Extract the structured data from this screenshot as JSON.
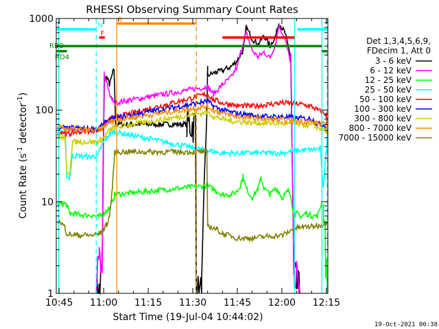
{
  "chart_data": {
    "type": "line",
    "title": "RHESSI Observing Summary Count Rates",
    "xlabel": "Start Time (19-Jul-04 10:44:02)",
    "ylabel_parts": [
      "Count Rate (s",
      "-1",
      " detector",
      "-1",
      ")"
    ],
    "yscale": "log",
    "ylim": [
      1,
      1000
    ],
    "xlim_min": [
      44.03,
      135.5
    ],
    "x_ticks": [
      {
        "m": 45,
        "label": "10:45"
      },
      {
        "m": 60,
        "label": "11:00"
      },
      {
        "m": 75,
        "label": "11:15"
      },
      {
        "m": 90,
        "label": "11:30"
      },
      {
        "m": 105,
        "label": "11:45"
      },
      {
        "m": 120,
        "label": "12:00"
      },
      {
        "m": 135,
        "label": "12:15"
      }
    ],
    "y_ticks": [
      {
        "v": 1,
        "label": "1"
      },
      {
        "v": 10,
        "label": "10"
      },
      {
        "v": 100,
        "label": "100"
      },
      {
        "v": 1000,
        "label": "1000"
      }
    ],
    "legend_header": [
      "Det 1,3,4,5,6,9,",
      "FDecim 1, Att 0"
    ],
    "legend_placement": "right",
    "timestamp": "19-Oct-2021 00:38",
    "series": [
      {
        "name": "3 - 6 keV",
        "color": "#000000",
        "points": [
          [
            57.5,
            1
          ],
          [
            58.5,
            1
          ],
          [
            59.5,
            1.8
          ],
          [
            60.2,
            210
          ],
          [
            61,
            230
          ],
          [
            62,
            190
          ],
          [
            63,
            250
          ],
          [
            63.5,
            280
          ],
          [
            64,
            70
          ],
          [
            72,
            70
          ],
          [
            80,
            70
          ],
          [
            88,
            70
          ],
          [
            91.2,
            1
          ],
          [
            93,
            1
          ],
          [
            95,
            240
          ],
          [
            98,
            260
          ],
          [
            100,
            270
          ],
          [
            103,
            300
          ],
          [
            105,
            350
          ],
          [
            107,
            450
          ],
          [
            108,
            800
          ],
          [
            110,
            600
          ],
          [
            112,
            520
          ],
          [
            114,
            650
          ],
          [
            116,
            500
          ],
          [
            118,
            650
          ],
          [
            119,
            900
          ],
          [
            121,
            700
          ],
          [
            123,
            380
          ],
          [
            124,
            1.8
          ],
          [
            125,
            1.2
          ],
          [
            126,
            1
          ]
        ]
      },
      {
        "name": "6 - 12 keV",
        "color": "#ff00ff",
        "points": [
          [
            57.5,
            1.5
          ],
          [
            58.5,
            2
          ],
          [
            59.5,
            2.5
          ],
          [
            60.2,
            230
          ],
          [
            61,
            200
          ],
          [
            62,
            150
          ],
          [
            63,
            130
          ],
          [
            63.5,
            120
          ],
          [
            95,
            180
          ],
          [
            97,
            150
          ],
          [
            100,
            190
          ],
          [
            103,
            230
          ],
          [
            105,
            300
          ],
          [
            107,
            550
          ],
          [
            108,
            700
          ],
          [
            110,
            450
          ],
          [
            112,
            380
          ],
          [
            114,
            430
          ],
          [
            116,
            370
          ],
          [
            118,
            550
          ],
          [
            119,
            850
          ],
          [
            121,
            600
          ],
          [
            123,
            330
          ],
          [
            124,
            2
          ],
          [
            125,
            1.5
          ],
          [
            126,
            1.2
          ]
        ]
      },
      {
        "name": "12 - 25 keV",
        "color": "#00ff00",
        "points": [
          [
            44.5,
            9.5
          ],
          [
            46,
            9.5
          ],
          [
            47,
            9.5
          ],
          [
            47.6,
            9
          ],
          [
            48.5,
            7.5
          ],
          [
            52,
            7.2
          ],
          [
            56,
            7.1
          ],
          [
            58,
            6.9
          ],
          [
            59,
            7
          ],
          [
            60,
            7.5
          ],
          [
            61,
            8
          ],
          [
            62,
            8.5
          ],
          [
            63,
            10
          ],
          [
            63.7,
            12
          ],
          [
            95,
            15
          ],
          [
            98,
            13
          ],
          [
            100,
            12
          ],
          [
            103,
            12
          ],
          [
            105,
            13
          ],
          [
            106,
            15
          ],
          [
            107,
            19
          ],
          [
            108,
            14
          ],
          [
            110,
            11
          ],
          [
            112,
            14
          ],
          [
            113,
            18
          ],
          [
            114,
            14
          ],
          [
            116,
            12
          ],
          [
            118,
            14
          ],
          [
            119,
            13
          ],
          [
            120,
            11
          ],
          [
            121,
            12
          ],
          [
            122,
            13
          ],
          [
            123,
            12
          ],
          [
            124,
            7
          ],
          [
            125,
            7.5
          ],
          [
            126,
            7
          ],
          [
            127,
            7
          ],
          [
            128,
            7.5
          ],
          [
            130,
            7
          ],
          [
            132,
            7
          ],
          [
            133.5,
            10
          ],
          [
            134,
            9
          ],
          [
            135.3,
            1
          ]
        ]
      },
      {
        "name": "25 - 50 keV",
        "color": "#00ffff",
        "points": [
          [
            44.5,
            57
          ],
          [
            46,
            59
          ],
          [
            47,
            57
          ],
          [
            47.6,
            19
          ],
          [
            48.5,
            18
          ],
          [
            49.5,
            32
          ],
          [
            55,
            31
          ],
          [
            58,
            32
          ],
          [
            59,
            38
          ],
          [
            60,
            45
          ],
          [
            61,
            50
          ],
          [
            62,
            55
          ],
          [
            63,
            57
          ],
          [
            63.7,
            58
          ],
          [
            95,
            36
          ],
          [
            100,
            34
          ],
          [
            105,
            34
          ],
          [
            110,
            34
          ],
          [
            115,
            34
          ],
          [
            120,
            34
          ],
          [
            125,
            36
          ],
          [
            130,
            37
          ],
          [
            133,
            38
          ],
          [
            133.5,
            20
          ],
          [
            134,
            15
          ],
          [
            135.3,
            50
          ]
        ]
      },
      {
        "name": "50 - 100 keV",
        "color": "#ff0000",
        "points": [
          [
            44.5,
            55
          ],
          [
            46,
            58
          ],
          [
            47,
            57
          ],
          [
            47.6,
            55
          ],
          [
            48.5,
            55
          ],
          [
            49.5,
            57
          ],
          [
            52,
            58
          ],
          [
            56,
            60
          ],
          [
            58,
            60
          ],
          [
            59,
            62
          ],
          [
            60,
            65
          ],
          [
            61,
            75
          ],
          [
            62,
            80
          ],
          [
            63,
            82
          ],
          [
            63.7,
            83
          ],
          [
            95,
            150
          ],
          [
            97,
            130
          ],
          [
            100,
            120
          ],
          [
            103,
            115
          ],
          [
            105,
            112
          ],
          [
            110,
            110
          ],
          [
            115,
            115
          ],
          [
            120,
            120
          ],
          [
            125,
            118
          ],
          [
            130,
            110
          ],
          [
            132,
            100
          ],
          [
            133.5,
            95
          ],
          [
            135,
            90
          ],
          [
            135.3,
            50
          ]
        ]
      },
      {
        "name": "100 - 300 keV",
        "color": "#0000ff",
        "points": [
          [
            44.5,
            65
          ],
          [
            46,
            65
          ],
          [
            47,
            64
          ],
          [
            47.6,
            62
          ],
          [
            48.5,
            63
          ],
          [
            49.5,
            64
          ],
          [
            52,
            63
          ],
          [
            56,
            62
          ],
          [
            58,
            64
          ],
          [
            59,
            66
          ],
          [
            60,
            70
          ],
          [
            61,
            75
          ],
          [
            62,
            78
          ],
          [
            63,
            80
          ],
          [
            63.7,
            82
          ],
          [
            95,
            125
          ],
          [
            97,
            110
          ],
          [
            100,
            100
          ],
          [
            103,
            95
          ],
          [
            105,
            92
          ],
          [
            110,
            88
          ],
          [
            115,
            85
          ],
          [
            120,
            85
          ],
          [
            125,
            82
          ],
          [
            130,
            80
          ],
          [
            132,
            70
          ],
          [
            133.5,
            70
          ],
          [
            135,
            68
          ],
          [
            135.3,
            65
          ]
        ]
      },
      {
        "name": "300 - 800 keV",
        "color": "#cccc00",
        "points": [
          [
            44.5,
            50
          ],
          [
            46,
            50
          ],
          [
            47,
            49
          ],
          [
            47.6,
            20
          ],
          [
            48.5,
            20
          ],
          [
            49.5,
            45
          ],
          [
            52,
            45
          ],
          [
            56,
            45
          ],
          [
            58,
            45
          ],
          [
            59,
            47
          ],
          [
            60,
            50
          ],
          [
            61,
            55
          ],
          [
            62,
            60
          ],
          [
            63,
            63
          ],
          [
            63.7,
            65
          ],
          [
            95,
            95
          ],
          [
            97,
            85
          ],
          [
            100,
            80
          ],
          [
            103,
            76
          ],
          [
            105,
            75
          ],
          [
            110,
            73
          ],
          [
            115,
            72
          ],
          [
            120,
            72
          ],
          [
            125,
            70
          ],
          [
            130,
            68
          ],
          [
            132,
            65
          ],
          [
            133.5,
            62
          ],
          [
            135,
            60
          ],
          [
            135.3,
            58
          ]
        ]
      },
      {
        "name": "800 - 7000 keV",
        "color": "#ff8800",
        "points": [
          [
            44.5,
            65
          ],
          [
            46,
            64
          ],
          [
            47,
            63
          ],
          [
            47.6,
            62
          ],
          [
            48.5,
            62
          ],
          [
            49.5,
            62
          ],
          [
            52,
            61
          ],
          [
            56,
            60
          ],
          [
            58,
            61
          ],
          [
            59,
            62
          ],
          [
            60,
            65
          ],
          [
            61,
            70
          ],
          [
            62,
            74
          ],
          [
            63,
            76
          ],
          [
            63.7,
            78
          ],
          [
            95,
            110
          ],
          [
            97,
            100
          ],
          [
            100,
            92
          ],
          [
            103,
            88
          ],
          [
            105,
            85
          ],
          [
            110,
            82
          ],
          [
            115,
            80
          ],
          [
            120,
            78
          ],
          [
            125,
            76
          ],
          [
            130,
            74
          ],
          [
            132,
            72
          ],
          [
            133.5,
            70
          ],
          [
            135,
            68
          ],
          [
            135.3,
            66
          ]
        ]
      },
      {
        "name": "7000 - 15000 keV",
        "color": "#808000",
        "points": [
          [
            44.5,
            6.2
          ],
          [
            46,
            5.8
          ],
          [
            47,
            5.2
          ],
          [
            47.6,
            4.5
          ],
          [
            48.5,
            4.4
          ],
          [
            52,
            4.3
          ],
          [
            56,
            4.3
          ],
          [
            58,
            4.4
          ],
          [
            59,
            4.6
          ],
          [
            60,
            5
          ],
          [
            61,
            5.6
          ],
          [
            62,
            7
          ],
          [
            63,
            15
          ],
          [
            63.7,
            35
          ],
          [
            95,
            5.5
          ],
          [
            98,
            5
          ],
          [
            100,
            4.5
          ],
          [
            103,
            4.2
          ],
          [
            105,
            4
          ],
          [
            110,
            4
          ],
          [
            115,
            4.2
          ],
          [
            120,
            4.3
          ],
          [
            125,
            5.2
          ],
          [
            130,
            5.4
          ],
          [
            133,
            5.5
          ],
          [
            135.3,
            6
          ]
        ]
      }
    ],
    "markers": {
      "vlines": [
        {
          "m": 44.8,
          "color": "#00ffff",
          "style": "solid"
        },
        {
          "m": 57.5,
          "color": "#00ffff",
          "style": "dashed"
        },
        {
          "m": 64.4,
          "color": "#ff8800",
          "style": "solid"
        },
        {
          "m": 91.2,
          "color": "#ff8800",
          "style": "dashed"
        },
        {
          "m": 124.3,
          "color": "#00ffff",
          "style": "solid"
        },
        {
          "m": 133.5,
          "color": "#00ffff",
          "style": "solid"
        },
        {
          "m": 135.3,
          "color": "#00ffff",
          "style": "dashed"
        }
      ],
      "bars": [
        {
          "label": "",
          "color": "#00ffff",
          "x0": 44.2,
          "x1": 57.5,
          "y": 760
        },
        {
          "label": "N",
          "color": "#00ffff",
          "x0": 57.5,
          "x1": 57.5,
          "y": 760
        },
        {
          "label": "S",
          "color": "#ff8800",
          "x0": 64.4,
          "x1": 91.2,
          "y": 880
        },
        {
          "label": "F",
          "color": "#ff0000",
          "x0": 58.5,
          "x1": 60.4,
          "y": 620
        },
        {
          "label": "",
          "color": "#ff0000",
          "x0": 100,
          "x1": 124.3,
          "y": 620
        },
        {
          "label": "RBO",
          "color": "#008800",
          "x0": 44.2,
          "x1": 133.5,
          "y": 500
        },
        {
          "label": "RD4",
          "color": "#008800",
          "x0": 44.2,
          "x1": 47.6,
          "y": 440
        },
        {
          "label": "",
          "color": "#008800",
          "x0": 133.5,
          "x1": 135.3,
          "y": 440
        },
        {
          "label": "",
          "color": "#00ffff",
          "x0": 125.2,
          "x1": 135.3,
          "y": 760
        }
      ]
    }
  }
}
